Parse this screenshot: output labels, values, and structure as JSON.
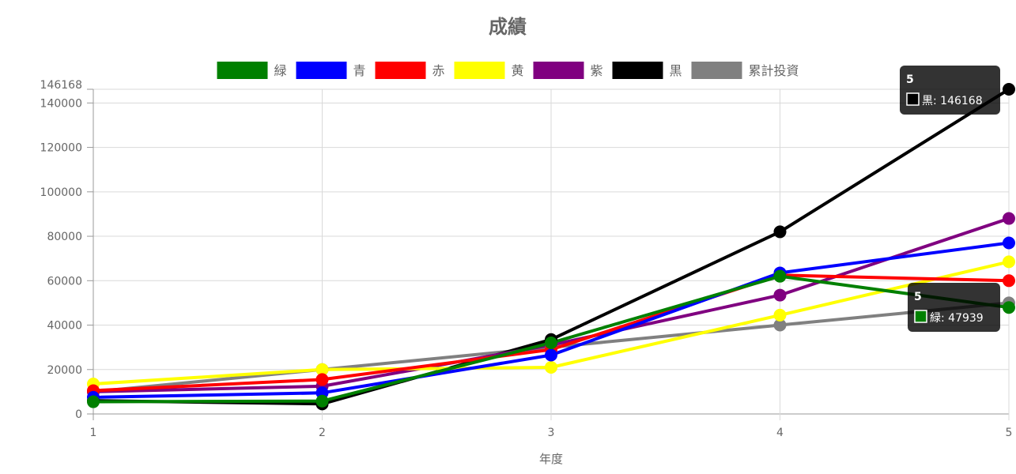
{
  "chart_data": {
    "type": "line",
    "title": "成績",
    "xlabel": "年度",
    "ylabel": "",
    "categories": [
      "1",
      "2",
      "3",
      "4",
      "5"
    ],
    "ylim": [
      0,
      146168
    ],
    "yticks": [
      {
        "value": 0,
        "label": "0"
      },
      {
        "value": 20000,
        "label": "20000"
      },
      {
        "value": 40000,
        "label": "40000"
      },
      {
        "value": 60000,
        "label": "60000"
      },
      {
        "value": 80000,
        "label": "80000"
      },
      {
        "value": 100000,
        "label": "100000"
      },
      {
        "value": 120000,
        "label": "120000"
      },
      {
        "value": 140000,
        "label": "140000"
      },
      {
        "value": 146168,
        "label": "146168"
      }
    ],
    "grid": true,
    "legend_position": "top-center",
    "series": [
      {
        "name": "緑",
        "color": "#008000",
        "values": [
          5500,
          5800,
          32000,
          62000,
          47939
        ]
      },
      {
        "name": "青",
        "color": "#0000ff",
        "values": [
          7500,
          9500,
          26500,
          63500,
          77000
        ]
      },
      {
        "name": "赤",
        "color": "#ff0000",
        "values": [
          10500,
          15500,
          29000,
          62500,
          60000
        ]
      },
      {
        "name": "黄",
        "color": "#ffff00",
        "values": [
          13500,
          20000,
          21000,
          44500,
          68500
        ]
      },
      {
        "name": "紫",
        "color": "#800080",
        "values": [
          10000,
          12500,
          31000,
          53500,
          88000
        ]
      },
      {
        "name": "黒",
        "color": "#000000",
        "values": [
          6000,
          4500,
          33500,
          82000,
          146168
        ]
      },
      {
        "name": "累計投資",
        "color": "#808080",
        "values": [
          10000,
          20000,
          30000,
          40000,
          50000
        ]
      }
    ],
    "tooltips": [
      {
        "title": "5",
        "label": "黒: 146168",
        "series": "黒",
        "x": "5"
      },
      {
        "title": "5",
        "label": "緑: 47939",
        "series": "緑",
        "x": "5"
      }
    ]
  }
}
